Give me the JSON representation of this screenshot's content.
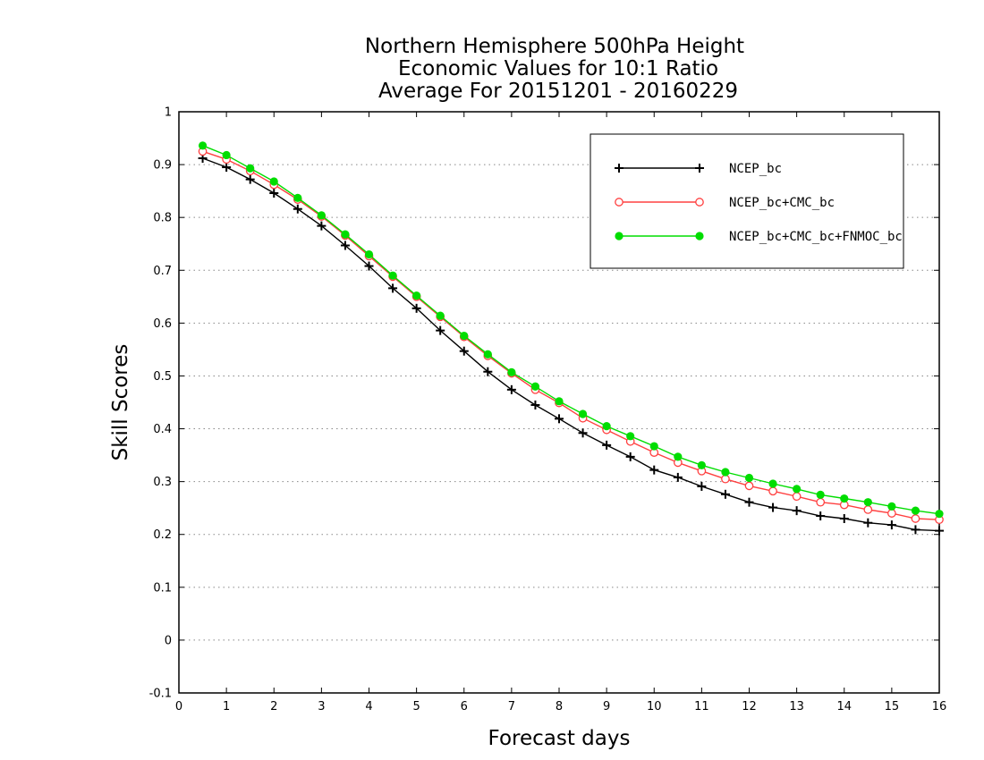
{
  "chart_data": {
    "type": "line",
    "title_lines": [
      "Northern Hemisphere 500hPa Height",
      "Economic Values for 10:1 Ratio",
      "Average For 20151201 - 20160229"
    ],
    "xlabel": "Forecast days",
    "ylabel": "Skill Scores",
    "xlim": [
      0,
      16
    ],
    "ylim": [
      -0.1,
      1
    ],
    "x_ticks": [
      0,
      1,
      2,
      3,
      4,
      5,
      6,
      7,
      8,
      9,
      10,
      11,
      12,
      13,
      14,
      15,
      16
    ],
    "y_ticks": [
      -0.1,
      0,
      0.1,
      0.2,
      0.3,
      0.4,
      0.5,
      0.6,
      0.7,
      0.8,
      0.9,
      1
    ],
    "y_tick_labels": [
      "-0.1",
      "0",
      "0.1",
      "0.2",
      "0.3",
      "0.4",
      "0.5",
      "0.6",
      "0.7",
      "0.8",
      "0.9",
      "1"
    ],
    "grid": "horizontal-dotted",
    "legend_position": "top-right",
    "x": [
      0.5,
      1,
      1.5,
      2,
      2.5,
      3,
      3.5,
      4,
      4.5,
      5,
      5.5,
      6,
      6.5,
      7,
      7.5,
      8,
      8.5,
      9,
      9.5,
      10,
      10.5,
      11,
      11.5,
      12,
      12.5,
      13,
      13.5,
      14,
      14.5,
      15,
      15.5,
      16
    ],
    "series": [
      {
        "name": "NCEP_bc",
        "color": "#000000",
        "marker": "plus",
        "values": [
          0.912,
          0.895,
          0.872,
          0.846,
          0.816,
          0.784,
          0.747,
          0.708,
          0.666,
          0.628,
          0.586,
          0.547,
          0.508,
          0.474,
          0.445,
          0.419,
          0.392,
          0.369,
          0.347,
          0.322,
          0.308,
          0.291,
          0.276,
          0.261,
          0.251,
          0.245,
          0.235,
          0.23,
          0.222,
          0.218,
          0.209,
          0.207
        ]
      },
      {
        "name": "NCEP_bc+CMC_bc",
        "color": "#ff4040",
        "marker": "open-circle",
        "values": [
          0.925,
          0.91,
          0.888,
          0.862,
          0.834,
          0.802,
          0.766,
          0.727,
          0.688,
          0.65,
          0.612,
          0.574,
          0.538,
          0.505,
          0.474,
          0.449,
          0.42,
          0.398,
          0.376,
          0.355,
          0.336,
          0.32,
          0.305,
          0.292,
          0.282,
          0.272,
          0.261,
          0.256,
          0.247,
          0.24,
          0.23,
          0.228
        ]
      },
      {
        "name": "NCEP_bc+CMC_bc+FNMOC_bc",
        "color": "#00dd00",
        "marker": "filled-circle",
        "values": [
          0.936,
          0.918,
          0.893,
          0.868,
          0.837,
          0.804,
          0.768,
          0.73,
          0.69,
          0.652,
          0.614,
          0.576,
          0.541,
          0.507,
          0.48,
          0.452,
          0.428,
          0.405,
          0.386,
          0.367,
          0.347,
          0.331,
          0.318,
          0.307,
          0.296,
          0.286,
          0.275,
          0.268,
          0.261,
          0.253,
          0.245,
          0.239
        ]
      }
    ]
  }
}
